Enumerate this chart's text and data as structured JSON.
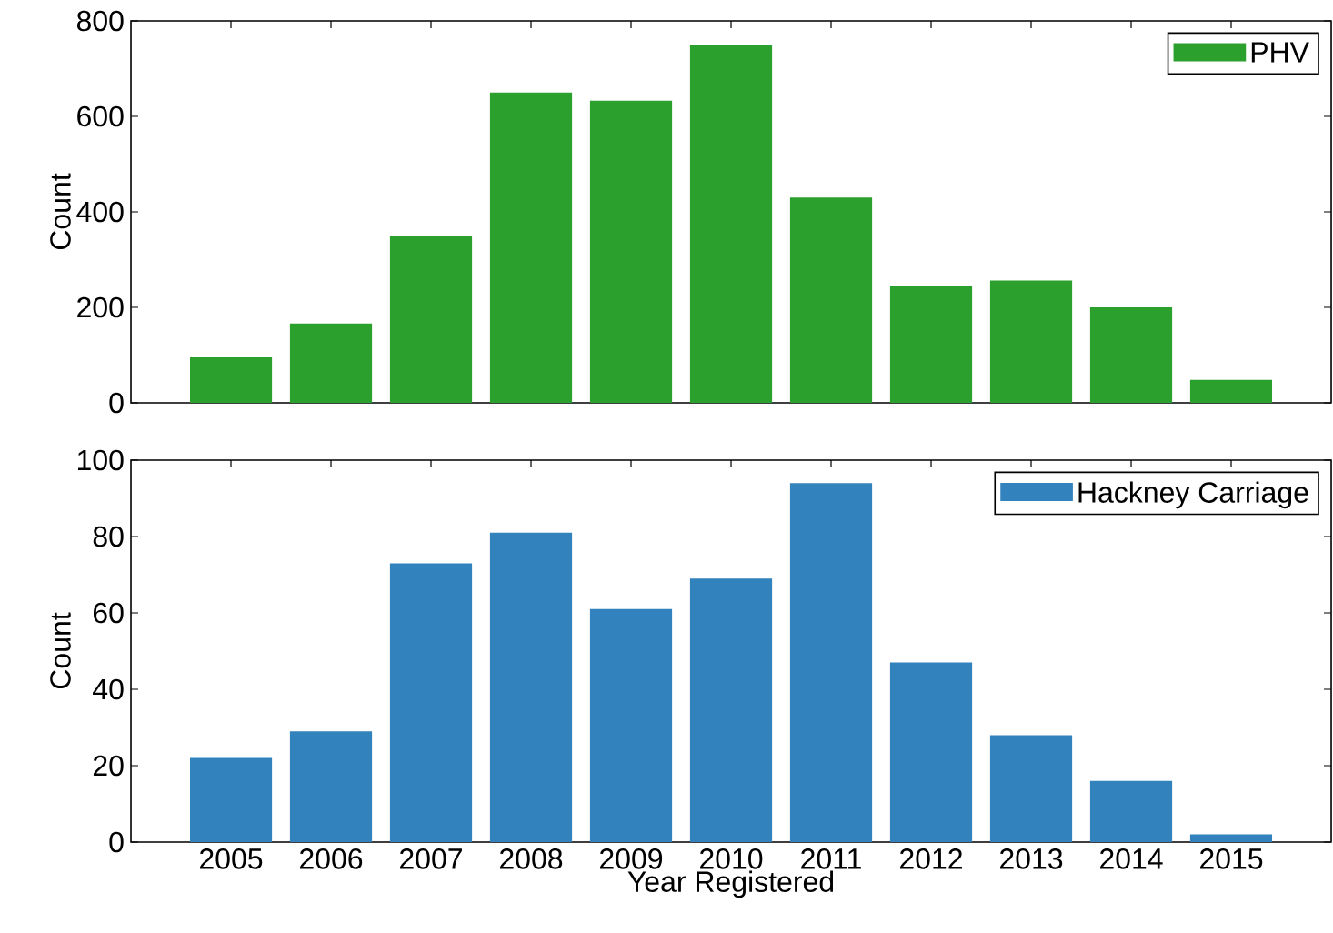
{
  "chart_data": [
    {
      "type": "bar",
      "ylabel": "Count",
      "categories": [
        "2005",
        "2006",
        "2007",
        "2008",
        "2009",
        "2010",
        "2011",
        "2012",
        "2013",
        "2014",
        "2015"
      ],
      "series": [
        {
          "name": "PHV",
          "color": "#2ca02c",
          "values": [
            95,
            166,
            350,
            650,
            633,
            750,
            430,
            244,
            256,
            200,
            48
          ]
        }
      ],
      "ylim": [
        0,
        800
      ],
      "yticks": [
        0,
        200,
        400,
        600,
        800
      ],
      "legend": "top right",
      "tick_labels": "y"
    },
    {
      "type": "bar",
      "xlabel": "Year Registered",
      "ylabel": "Count",
      "categories": [
        "2005",
        "2006",
        "2007",
        "2008",
        "2009",
        "2010",
        "2011",
        "2012",
        "2013",
        "2014",
        "2015"
      ],
      "series": [
        {
          "name": "Hackney Carriage",
          "color": "#3182bd",
          "values": [
            22,
            29,
            73,
            81,
            61,
            69,
            94,
            47,
            28,
            16,
            2
          ]
        }
      ],
      "ylim": [
        0,
        100
      ],
      "yticks": [
        0,
        20,
        40,
        60,
        80,
        100
      ],
      "legend": "top right"
    }
  ]
}
